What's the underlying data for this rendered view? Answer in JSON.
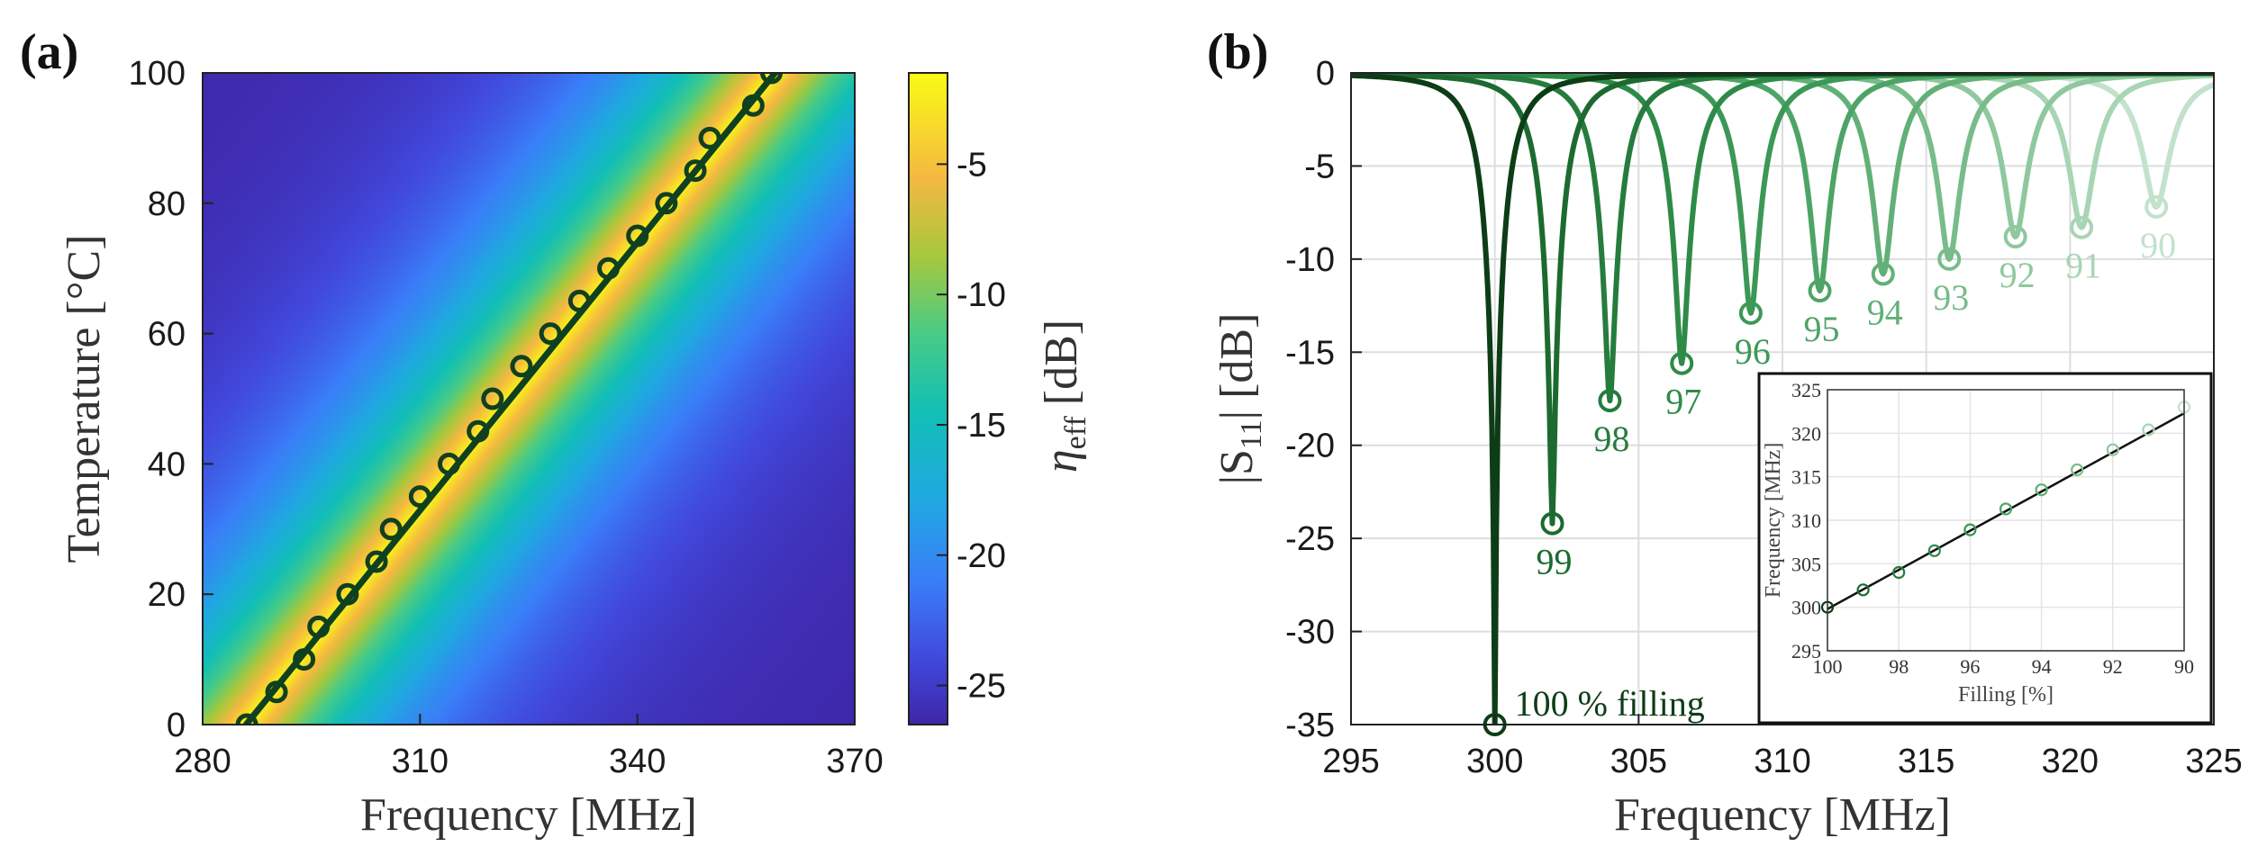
{
  "chart_data": [
    {
      "panel_label": "(a)",
      "type": "heatmap",
      "xlabel": "Frequency [MHz]",
      "ylabel": "Temperature [°C]",
      "xlim": [
        280,
        370
      ],
      "ylim": [
        0,
        100
      ],
      "xticks": [
        280,
        310,
        340,
        370
      ],
      "yticks": [
        0,
        20,
        40,
        60,
        80,
        100
      ],
      "colorbar": {
        "label": "η_eff [dB]",
        "label_main": "η",
        "label_sub": "eff",
        "label_unit": "[dB]",
        "range": [
          -26.5,
          -1.5
        ],
        "ticks": [
          -5,
          -10,
          -15,
          -20,
          -25
        ]
      },
      "ridge": {
        "f_at_0C": 286,
        "f_at_100C": 359
      },
      "fit_line": {
        "x": [
          286,
          359
        ],
        "y": [
          0,
          100
        ]
      },
      "markers": {
        "temperature": [
          0,
          5,
          10,
          15,
          20,
          25,
          30,
          35,
          40,
          45,
          50,
          55,
          60,
          65,
          70,
          75,
          80,
          85,
          90,
          95,
          100
        ],
        "frequency": [
          286.1,
          290.2,
          294.0,
          296.0,
          300.0,
          304.0,
          306.0,
          310.0,
          314.0,
          318.0,
          320.0,
          324.0,
          328.0,
          332.0,
          336.0,
          340.0,
          344.0,
          348.0,
          350.0,
          356.0,
          358.5
        ]
      }
    },
    {
      "panel_label": "(b)",
      "type": "line",
      "xlabel": "Frequency [MHz]",
      "ylabel": "|S11| [dB]",
      "ylabel_main": "|S",
      "ylabel_sub": "11",
      "ylabel_end": "| [dB]",
      "xlim": [
        295,
        325
      ],
      "ylim": [
        -35,
        0
      ],
      "xticks": [
        295,
        300,
        305,
        310,
        315,
        320,
        325
      ],
      "yticks": [
        0,
        -5,
        -10,
        -15,
        -20,
        -25,
        -30,
        -35
      ],
      "grid": true,
      "annotation": "100 % filling",
      "series": [
        {
          "name": "100",
          "f0": 300.0,
          "min_db": -35.0,
          "color": "#0d3d17"
        },
        {
          "name": "99",
          "f0": 302.0,
          "min_db": -24.2,
          "color": "#1d6a31"
        },
        {
          "name": "98",
          "f0": 304.0,
          "min_db": -17.6,
          "color": "#257c3d"
        },
        {
          "name": "97",
          "f0": 306.5,
          "min_db": -15.6,
          "color": "#2e8b47"
        },
        {
          "name": "96",
          "f0": 308.9,
          "min_db": -12.9,
          "color": "#3c9856"
        },
        {
          "name": "95",
          "f0": 311.3,
          "min_db": -11.7,
          "color": "#4ea466"
        },
        {
          "name": "94",
          "f0": 313.5,
          "min_db": -10.8,
          "color": "#62b077"
        },
        {
          "name": "93",
          "f0": 315.8,
          "min_db": -10.0,
          "color": "#78bc8a"
        },
        {
          "name": "92",
          "f0": 318.1,
          "min_db": -8.8,
          "color": "#8fc89e"
        },
        {
          "name": "91",
          "f0": 320.4,
          "min_db": -8.3,
          "color": "#a8d5b4"
        },
        {
          "name": "90",
          "f0": 323.0,
          "min_db": -7.2,
          "color": "#c2e2cb"
        }
      ],
      "inset": {
        "type": "line",
        "xlabel": "Filling [%]",
        "ylabel": "Frequency [MHz]",
        "xlim": [
          100,
          90
        ],
        "ylim": [
          295,
          325
        ],
        "xticks": [
          100,
          98,
          96,
          94,
          92,
          90
        ],
        "yticks": [
          295,
          300,
          305,
          310,
          315,
          320,
          325
        ],
        "points": {
          "filling": [
            100,
            99,
            98,
            97,
            96,
            95,
            94,
            93,
            92,
            91,
            90
          ],
          "frequency": [
            300.0,
            302.0,
            304.0,
            306.5,
            308.9,
            311.3,
            313.5,
            315.8,
            318.1,
            320.4,
            323.0
          ]
        },
        "fit": {
          "x": [
            100,
            90
          ],
          "y": [
            299.8,
            322.3
          ]
        }
      }
    }
  ]
}
